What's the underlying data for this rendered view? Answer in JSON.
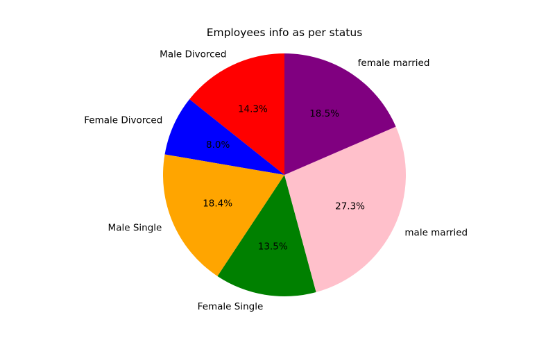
{
  "chart_data": {
    "type": "pie",
    "title": "Employees info as per status",
    "start_angle_deg": 90,
    "direction": "counterclockwise",
    "slices": [
      {
        "label": "Male Divorced",
        "value": 14.3,
        "pct_label": "14.3%",
        "color": "#ff0000"
      },
      {
        "label": "Female Divorced",
        "value": 8.0,
        "pct_label": "8.0%",
        "color": "#0000ff"
      },
      {
        "label": "Male Single",
        "value": 18.4,
        "pct_label": "18.4%",
        "color": "#ffa500"
      },
      {
        "label": "Female Single",
        "value": 13.5,
        "pct_label": "13.5%",
        "color": "#008000"
      },
      {
        "label": "male married",
        "value": 27.3,
        "pct_label": "27.3%",
        "color": "#ffc0cb"
      },
      {
        "label": "female married",
        "value": 18.5,
        "pct_label": "18.5%",
        "color": "#800080"
      }
    ]
  }
}
